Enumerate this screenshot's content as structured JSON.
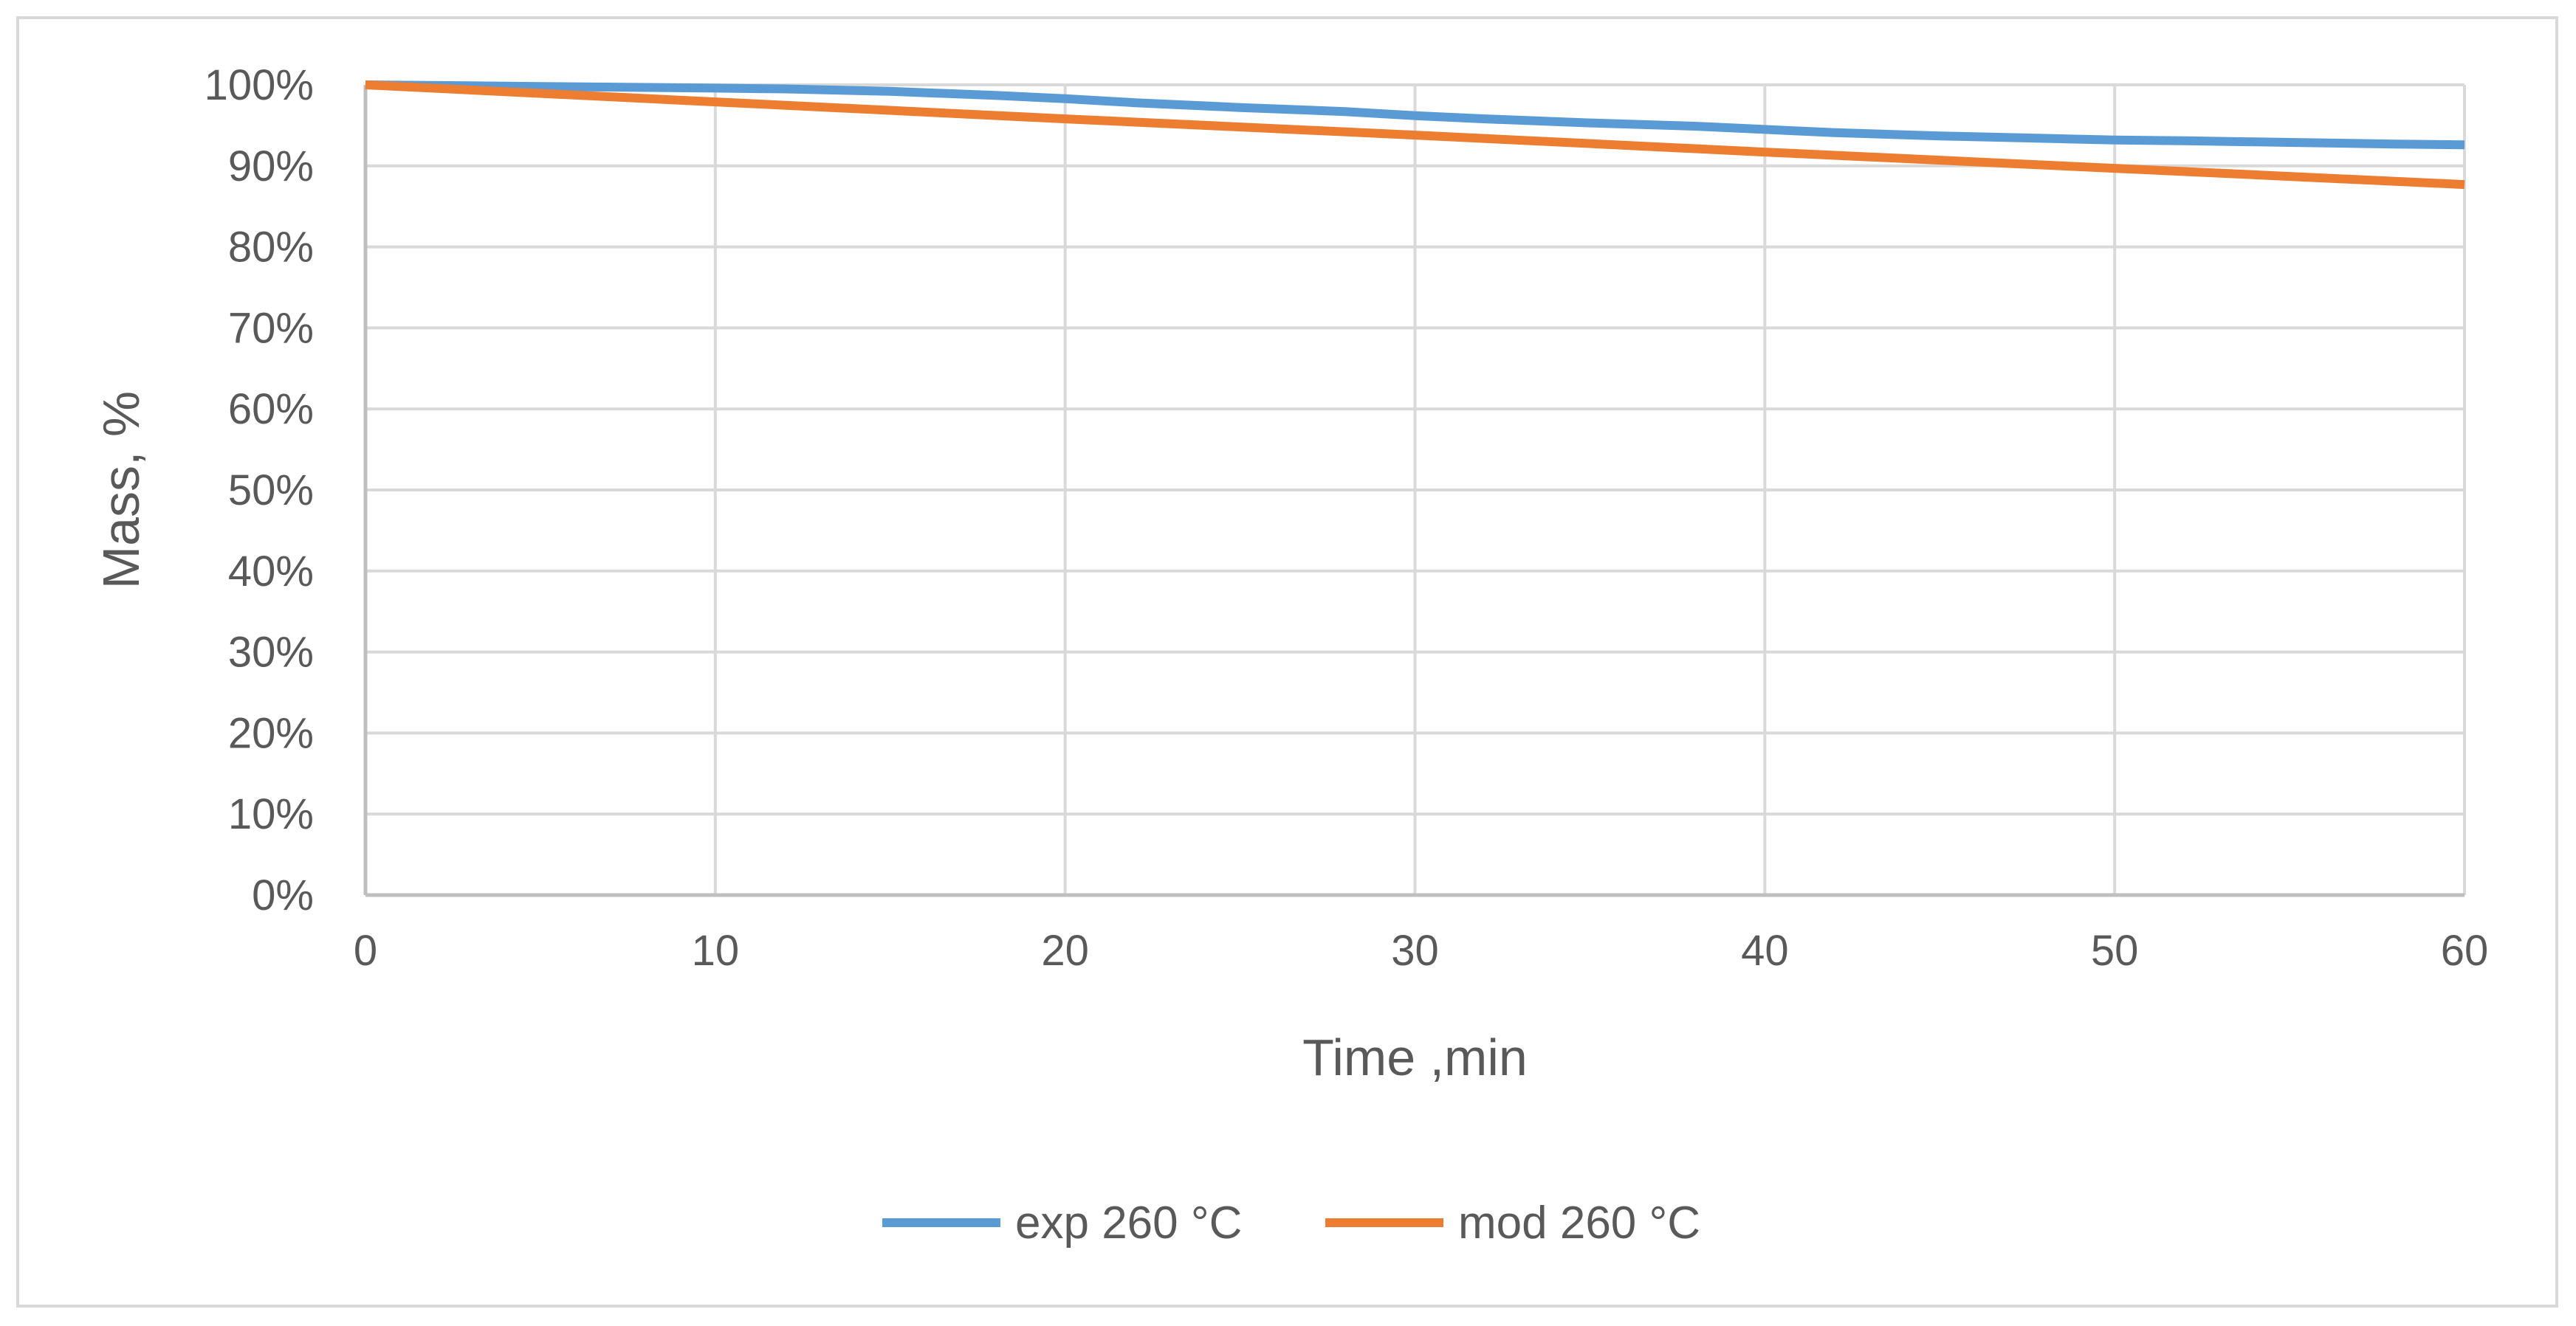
{
  "chart_data": {
    "type": "line",
    "title": "",
    "xlabel": "Time ,min",
    "ylabel": "Mass, %",
    "xlim": [
      0,
      60
    ],
    "ylim": [
      0,
      100
    ],
    "x_ticks": [
      0,
      10,
      20,
      30,
      40,
      50,
      60
    ],
    "x_tick_labels": [
      "0",
      "10",
      "20",
      "30",
      "40",
      "50",
      "60"
    ],
    "y_ticks": [
      0,
      10,
      20,
      30,
      40,
      50,
      60,
      70,
      80,
      90,
      100
    ],
    "y_tick_labels": [
      "0%",
      "10%",
      "20%",
      "30%",
      "40%",
      "50%",
      "60%",
      "70%",
      "80%",
      "90%",
      "100%"
    ],
    "grid": true,
    "legend_position": "bottom-center",
    "series": [
      {
        "name": "exp 260 °C",
        "color": "#5b9bd5",
        "x": [
          0,
          5,
          10,
          12,
          15,
          18,
          20,
          22,
          25,
          28,
          30,
          32,
          35,
          38,
          40,
          42,
          45,
          48,
          50,
          52,
          55,
          58,
          60
        ],
        "y": [
          100,
          99.8,
          99.6,
          99.5,
          99.2,
          98.7,
          98.3,
          97.8,
          97.2,
          96.7,
          96.2,
          95.8,
          95.3,
          94.9,
          94.5,
          94.1,
          93.7,
          93.4,
          93.2,
          93.1,
          92.9,
          92.7,
          92.6
        ]
      },
      {
        "name": "mod 260 °C",
        "color": "#ed7d31",
        "x": [
          0,
          10,
          20,
          30,
          40,
          50,
          60
        ],
        "y": [
          100,
          97.9,
          95.8,
          93.8,
          91.7,
          89.7,
          87.7
        ]
      }
    ]
  }
}
